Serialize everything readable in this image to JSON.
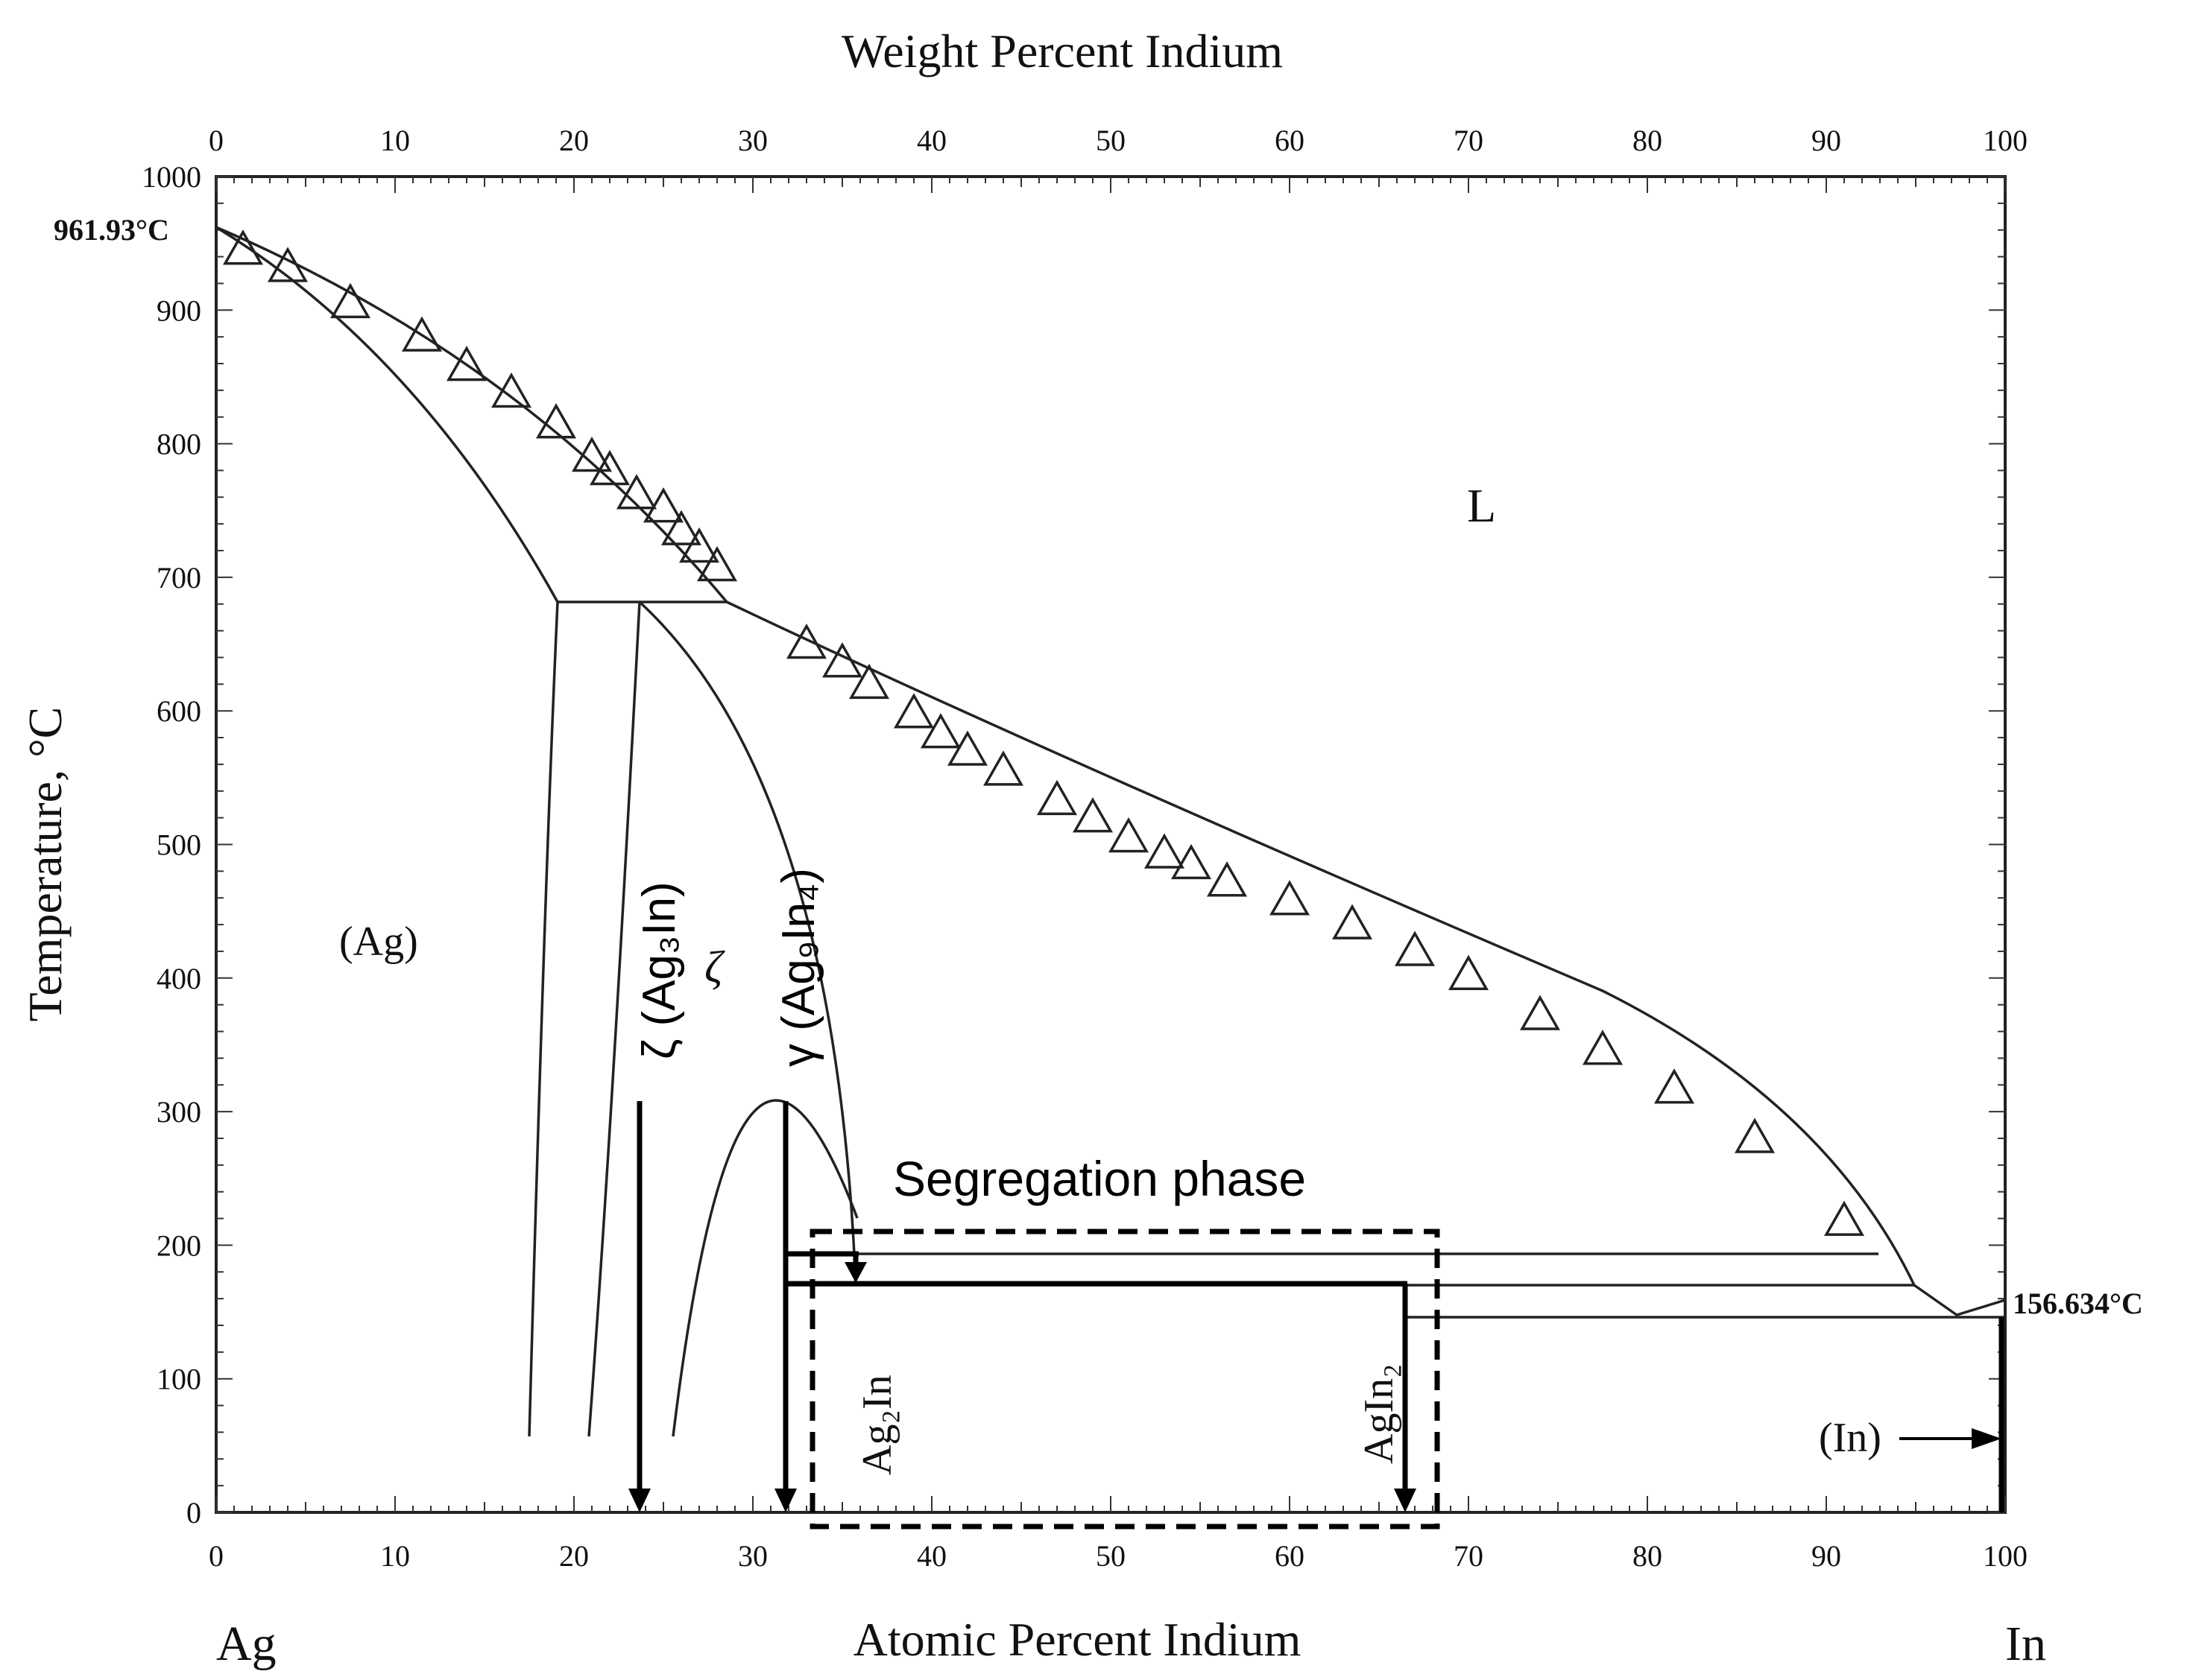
{
  "axes": {
    "top_title": "Weight Percent Indium",
    "bottom_title": "Atomic Percent Indium",
    "y_title": "Temperature, °C",
    "left_element": "Ag",
    "right_element": "In",
    "x_ticks": [
      "0",
      "10",
      "20",
      "30",
      "40",
      "50",
      "60",
      "70",
      "80",
      "90",
      "100"
    ],
    "y_ticks": [
      "0",
      "100",
      "200",
      "300",
      "400",
      "500",
      "600",
      "700",
      "800",
      "900",
      "1000"
    ]
  },
  "chart_data": {
    "type": "phase_diagram",
    "xlim": [
      0,
      100
    ],
    "ylim": [
      0,
      1000
    ],
    "melting_points": {
      "ag_label": "961.93°C",
      "ag": 961.93,
      "in_label": "156.634°C",
      "in": 156.634
    },
    "phases": {
      "liquid": "L",
      "ag_solid": "(Ag)",
      "zeta": "ζ",
      "in_solid": "(In)",
      "ag2in": "Ag₂In",
      "agin2": "AgIn₂"
    },
    "annotations": {
      "zeta_phase": "ζ (Ag₃In)",
      "gamma_phase": "γ (Ag₉In₄)",
      "segregation": "Segregation phase"
    },
    "liquidus_data_points": [
      [
        1.5,
        945
      ],
      [
        4,
        932
      ],
      [
        7.5,
        905
      ],
      [
        11.5,
        880
      ],
      [
        14,
        858
      ],
      [
        16.5,
        838
      ],
      [
        19,
        815
      ],
      [
        21,
        790
      ],
      [
        22,
        780
      ],
      [
        23.5,
        762
      ],
      [
        25,
        752
      ],
      [
        26,
        735
      ],
      [
        27,
        722
      ],
      [
        28,
        708
      ],
      [
        33,
        650
      ],
      [
        35,
        636
      ],
      [
        36.5,
        620
      ],
      [
        39,
        598
      ],
      [
        40.5,
        583
      ],
      [
        42,
        570
      ],
      [
        44,
        555
      ],
      [
        47,
        533
      ],
      [
        49,
        520
      ],
      [
        51,
        505
      ],
      [
        53,
        493
      ],
      [
        54.5,
        485
      ],
      [
        56.5,
        472
      ],
      [
        60,
        458
      ],
      [
        63.5,
        440
      ],
      [
        67,
        420
      ],
      [
        70,
        402
      ],
      [
        74,
        372
      ],
      [
        77.5,
        346
      ],
      [
        81.5,
        317
      ],
      [
        86,
        280
      ],
      [
        91,
        218
      ]
    ],
    "reaction_lines": [
      {
        "T": 685,
        "x_from": 19,
        "x_to": 29
      },
      {
        "T": 195,
        "x_from": 32,
        "x_to": 93
      },
      {
        "T": 172,
        "x_from": 32,
        "x_to": 95
      },
      {
        "T": 148,
        "x_from": 66.5,
        "x_to": 100
      }
    ],
    "compositions": {
      "zeta_line": 23.5,
      "gamma_line": 32,
      "ag2in": 36,
      "agin2": 66.5
    },
    "segregation_box": {
      "x": [
        33.5,
        68
      ],
      "T": [
        -5,
        210
      ]
    }
  }
}
